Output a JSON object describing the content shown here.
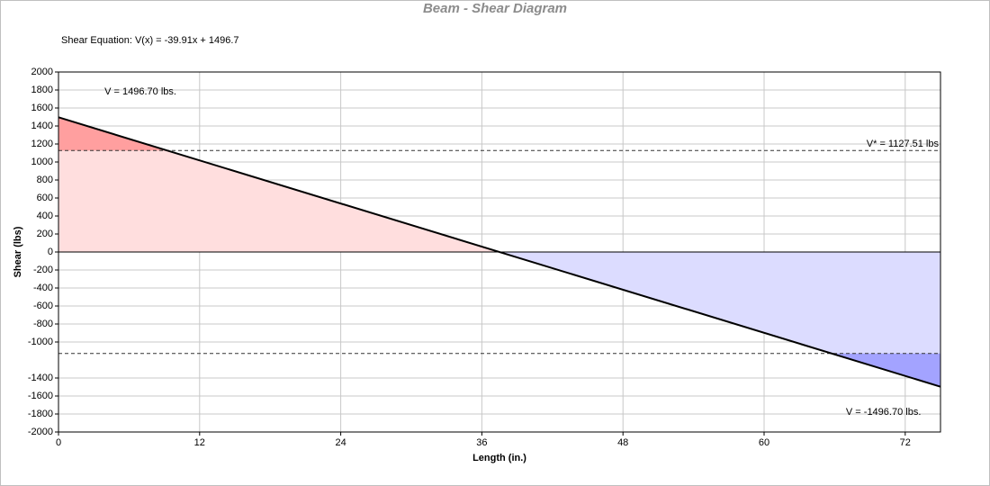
{
  "chart_data": {
    "type": "line",
    "title": "Beam - Shear Diagram",
    "equation": "Shear Equation:  V(x) = -39.91x + 1496.7",
    "x_label": "Length (in.)",
    "y_label": "Shear (lbs)",
    "x": [
      0,
      75
    ],
    "series": [
      {
        "name": "V(x)",
        "color": "#000000",
        "values": [
          1496.7,
          -1496.7
        ]
      }
    ],
    "positive_fill": "#ffdede",
    "positive_excess_fill": "#ff9f9f",
    "negative_fill": "#dcdcff",
    "negative_excess_fill": "#a3a3ff",
    "reference_lines": [
      1127.51,
      -1127.51
    ],
    "annotations": [
      {
        "text": "V = 1496.70 lbs.",
        "x": 2,
        "y": 1780
      },
      {
        "text": "V* = 1127.51 lbs",
        "x": 75,
        "y": 1200
      },
      {
        "text": "V = -1496.70 lbs.",
        "x": 73.5,
        "y": -1780
      }
    ],
    "xlim": [
      0,
      75
    ],
    "xticks": [
      0,
      12,
      24,
      36,
      48,
      60,
      72
    ],
    "ylim": [
      -2000,
      2000
    ],
    "yticks": [
      2000,
      1800,
      1600,
      1400,
      1200,
      1000,
      800,
      600,
      400,
      200,
      0,
      -200,
      -400,
      -600,
      -800,
      -1000,
      -1400,
      -1600,
      -1800,
      -2000
    ],
    "grid": true
  }
}
